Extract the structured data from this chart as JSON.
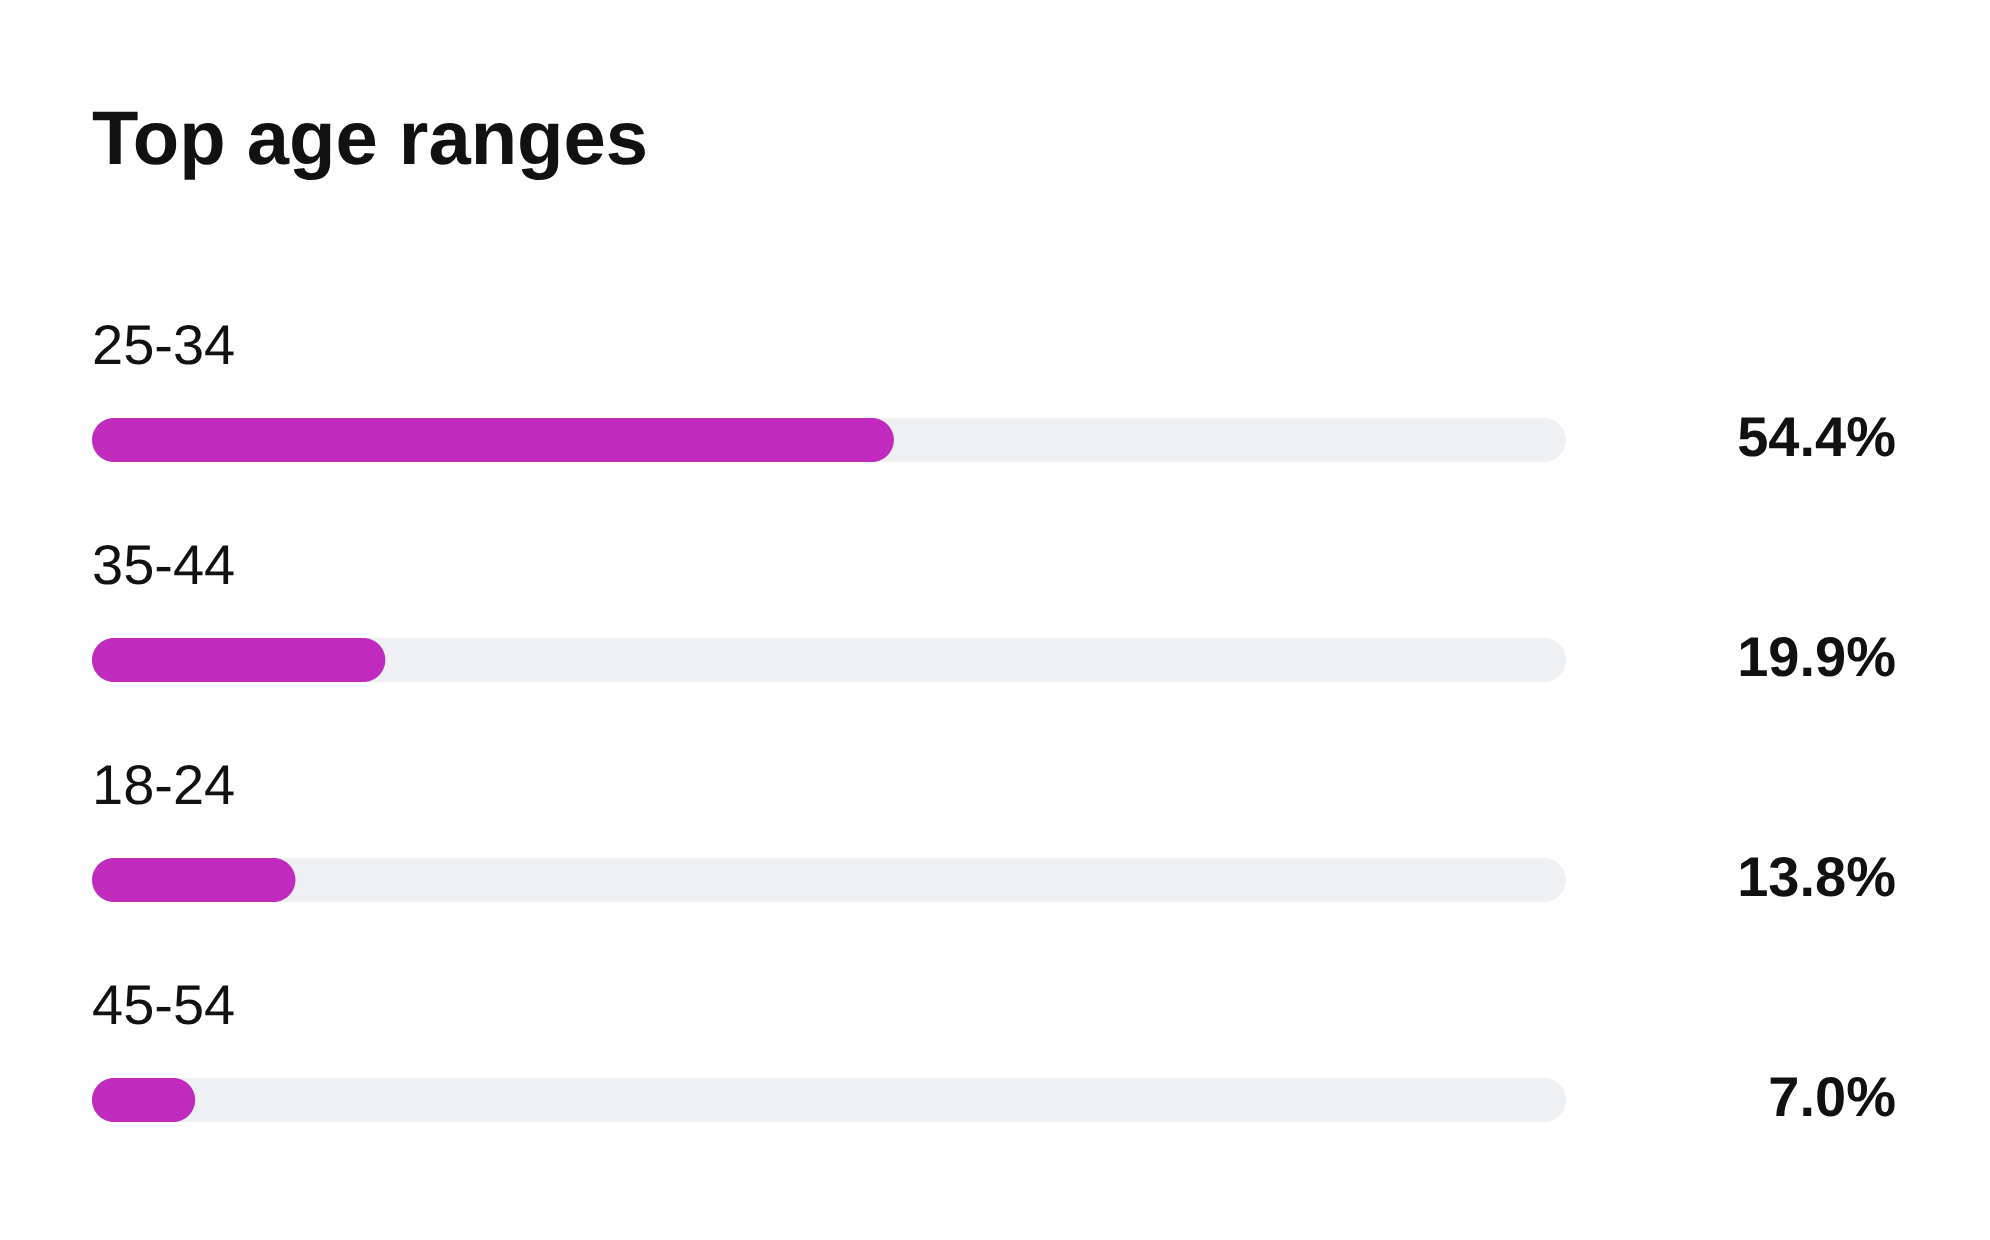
{
  "chart_data": {
    "type": "bar",
    "orientation": "horizontal",
    "title": "Top age ranges",
    "categories": [
      "25-34",
      "35-44",
      "18-24",
      "45-54"
    ],
    "values": [
      54.4,
      19.9,
      13.8,
      7.0
    ],
    "value_labels": [
      "54.4%",
      "19.9%",
      "13.8%",
      "7.0%"
    ],
    "color": "#c02abd",
    "xlim": [
      0,
      100
    ]
  }
}
